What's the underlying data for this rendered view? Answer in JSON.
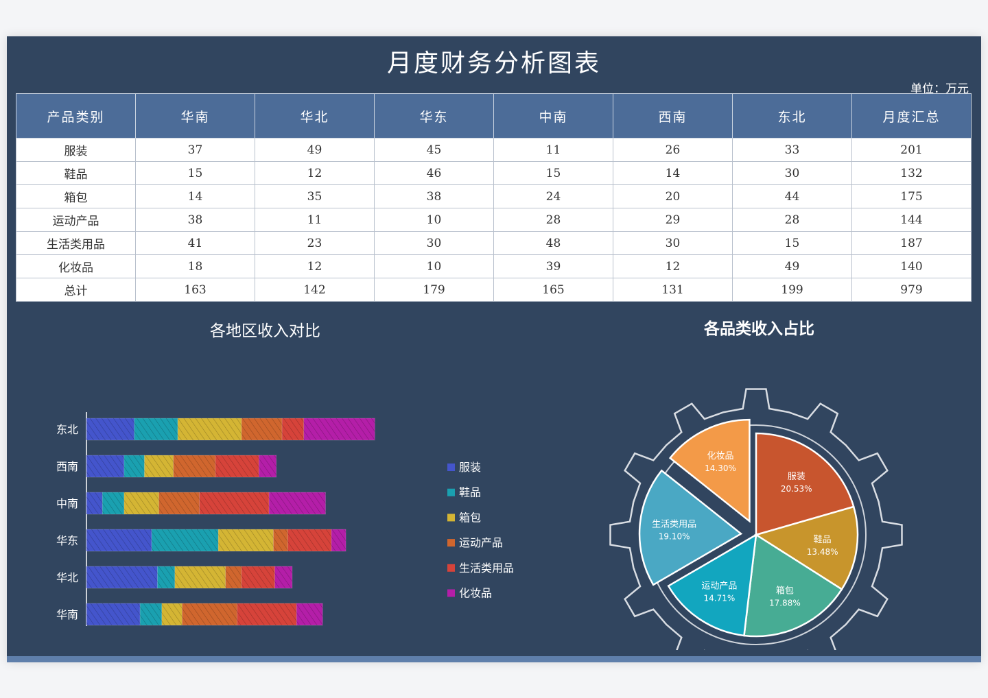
{
  "title": "月度财务分析图表",
  "unit": "单位：万元",
  "table": {
    "headers": [
      "产品类别",
      "华南",
      "华北",
      "华东",
      "中南",
      "西南",
      "东北",
      "月度汇总"
    ],
    "rows": [
      [
        "服装",
        "37",
        "49",
        "45",
        "11",
        "26",
        "33",
        "201"
      ],
      [
        "鞋品",
        "15",
        "12",
        "46",
        "15",
        "14",
        "30",
        "132"
      ],
      [
        "箱包",
        "14",
        "35",
        "38",
        "24",
        "20",
        "44",
        "175"
      ],
      [
        "运动产品",
        "38",
        "11",
        "10",
        "28",
        "29",
        "28",
        "144"
      ],
      [
        "生活类用品",
        "41",
        "23",
        "30",
        "48",
        "30",
        "15",
        "187"
      ],
      [
        "化妆品",
        "18",
        "12",
        "10",
        "39",
        "12",
        "49",
        "140"
      ],
      [
        "总计",
        "163",
        "142",
        "179",
        "165",
        "131",
        "199",
        "979"
      ]
    ]
  },
  "colors": {
    "服装": "#4455cc",
    "鞋品": "#1aa0b0",
    "箱包": "#d4b534",
    "运动产品": "#d0662e",
    "生活类用品": "#d6433a",
    "化妆品": "#b41ea8"
  },
  "chart_data": [
    {
      "type": "bar",
      "orientation": "horizontal",
      "stacked": true,
      "title": "各地区收入对比",
      "categories": [
        "东北",
        "西南",
        "中南",
        "华东",
        "华北",
        "华南"
      ],
      "series": [
        {
          "name": "服装",
          "values": [
            33,
            26,
            11,
            45,
            49,
            37
          ]
        },
        {
          "name": "鞋品",
          "values": [
            30,
            14,
            15,
            46,
            12,
            15
          ]
        },
        {
          "name": "箱包",
          "values": [
            44,
            20,
            24,
            38,
            35,
            14
          ]
        },
        {
          "name": "运动产品",
          "values": [
            28,
            29,
            28,
            10,
            11,
            38
          ]
        },
        {
          "name": "生活类用品",
          "values": [
            15,
            30,
            48,
            30,
            23,
            41
          ]
        },
        {
          "name": "化妆品",
          "values": [
            49,
            12,
            39,
            10,
            12,
            18
          ]
        }
      ],
      "xlim": [
        0,
        250
      ],
      "xticks": [
        "0",
        "50",
        "100",
        "150",
        "200",
        "250"
      ],
      "legend": "right",
      "grid": false
    },
    {
      "type": "pie",
      "title": "各品类收入占比",
      "slices": [
        {
          "name": "服装",
          "value": 201,
          "label": "20.53%",
          "color": "#c8552e"
        },
        {
          "name": "鞋品",
          "value": 132,
          "label": "13.48%",
          "color": "#c8952c"
        },
        {
          "name": "箱包",
          "value": 175,
          "label": "17.88%",
          "color": "#47ac94"
        },
        {
          "name": "运动产品",
          "value": 144,
          "label": "14.71%",
          "color": "#12a6bf"
        },
        {
          "name": "生活类用品",
          "value": 187,
          "label": "19.10%",
          "color": "#4aa8c4",
          "exploded": true
        },
        {
          "name": "化妆品",
          "value": 140,
          "label": "14.30%",
          "color": "#f39a48",
          "exploded": true
        }
      ],
      "legend": "none"
    }
  ]
}
